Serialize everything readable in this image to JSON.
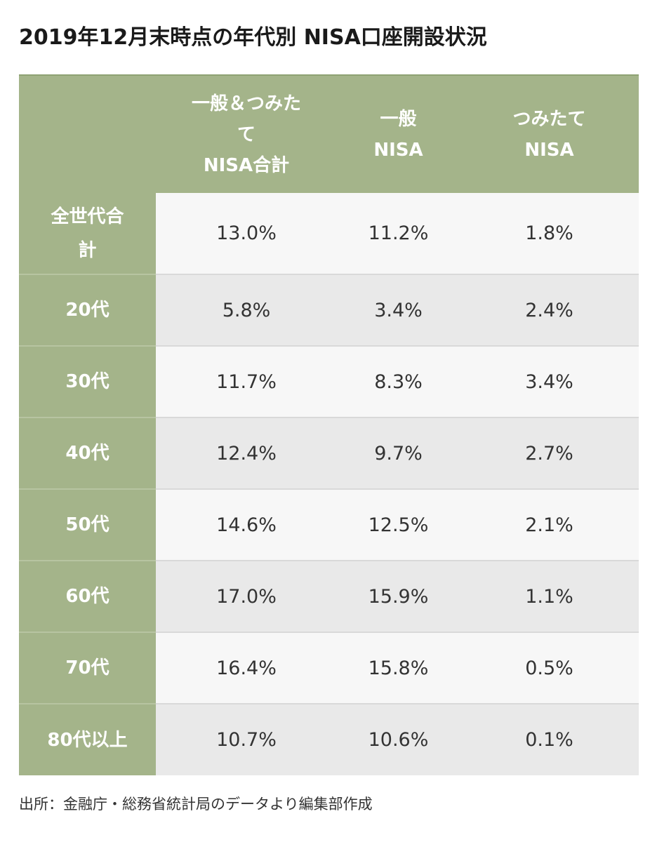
{
  "title": "2019年12月末時点の年代別 NISA口座開設状況",
  "table": {
    "headers": [
      "",
      "一般＆つみた\nて\nNISA合計",
      "一般\nNISA",
      "つみたて\nNISA"
    ],
    "rows": [
      {
        "label": "全世代合\n計",
        "values": [
          "13.0%",
          "11.2%",
          "1.8%"
        ]
      },
      {
        "label": "20代",
        "values": [
          "5.8%",
          "3.4%",
          "2.4%"
        ]
      },
      {
        "label": "30代",
        "values": [
          "11.7%",
          "8.3%",
          "3.4%"
        ]
      },
      {
        "label": "40代",
        "values": [
          "12.4%",
          "9.7%",
          "2.7%"
        ]
      },
      {
        "label": "50代",
        "values": [
          "14.6%",
          "12.5%",
          "2.1%"
        ]
      },
      {
        "label": "60代",
        "values": [
          "17.0%",
          "15.9%",
          "1.1%"
        ]
      },
      {
        "label": "70代",
        "values": [
          "16.4%",
          "15.8%",
          "0.5%"
        ]
      },
      {
        "label": "80代以上",
        "values": [
          "10.7%",
          "10.6%",
          "0.1%"
        ]
      }
    ]
  },
  "source": "出所：金融庁・総務省統計局のデータより編集部作成",
  "colors": {
    "header_green": "#a4b48a",
    "row_light": "#f7f7f7",
    "row_dark": "#e9e9e9"
  }
}
